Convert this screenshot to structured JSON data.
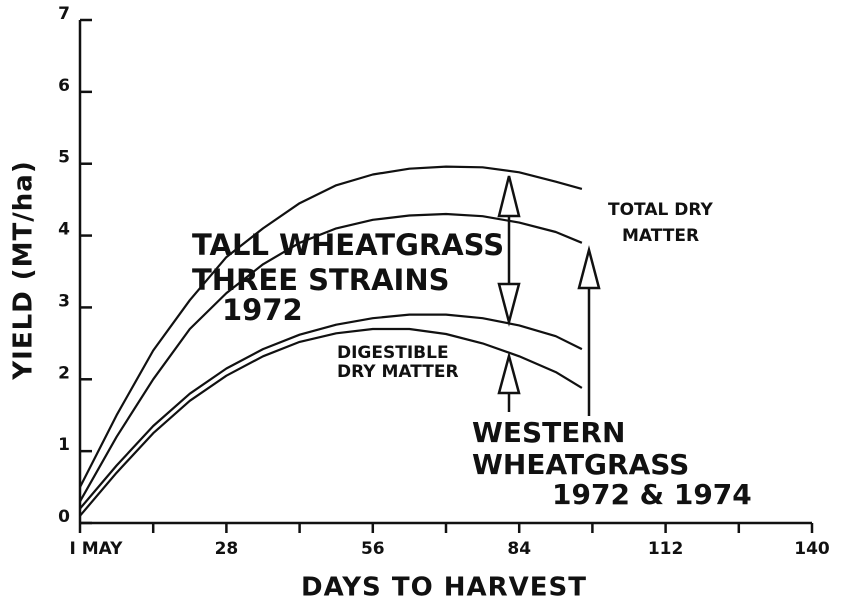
{
  "chart_data": {
    "type": "line",
    "xlabel": "DAYS TO HARVEST",
    "ylabel": "YIELD (MT/ha)",
    "x": [
      0,
      7,
      14,
      21,
      28,
      35,
      42,
      49,
      56,
      63,
      70,
      77,
      84,
      91,
      96
    ],
    "series": [
      {
        "color": "#111111",
        "values": [
          0.5,
          1.5,
          2.4,
          3.1,
          3.7,
          4.1,
          4.45,
          4.7,
          4.85,
          4.93,
          4.96,
          4.95,
          4.88,
          4.75,
          4.65
        ]
      },
      {
        "color": "#111111",
        "values": [
          0.3,
          1.2,
          2.0,
          2.7,
          3.2,
          3.6,
          3.9,
          4.1,
          4.22,
          4.28,
          4.3,
          4.27,
          4.18,
          4.05,
          3.9
        ]
      },
      {
        "color": "#111111",
        "values": [
          0.2,
          0.8,
          1.35,
          1.8,
          2.15,
          2.42,
          2.62,
          2.76,
          2.85,
          2.9,
          2.9,
          2.85,
          2.75,
          2.6,
          2.42
        ]
      },
      {
        "color": "#111111",
        "values": [
          0.1,
          0.7,
          1.25,
          1.7,
          2.05,
          2.32,
          2.52,
          2.64,
          2.7,
          2.7,
          2.63,
          2.5,
          2.32,
          2.1,
          1.88
        ]
      }
    ],
    "xlim": [
      0,
      140
    ],
    "ylim": [
      0,
      7
    ],
    "xticks": [
      {
        "value": 0,
        "label": "I MAY"
      },
      28,
      56,
      84,
      112,
      140
    ],
    "xminor_ticks": [
      14,
      42,
      70,
      98,
      126
    ],
    "yticks": [
      0,
      1,
      2,
      3,
      4,
      5,
      6,
      7
    ],
    "annotations": [
      "TALL WHEATGRASS",
      "THREE STRAINS",
      "1972",
      "TOTAL DRY",
      "MATTER",
      "DIGESTIBLE",
      "DRY MATTER",
      "WESTERN",
      "WHEATGRASS",
      "1972 & 1974"
    ]
  }
}
